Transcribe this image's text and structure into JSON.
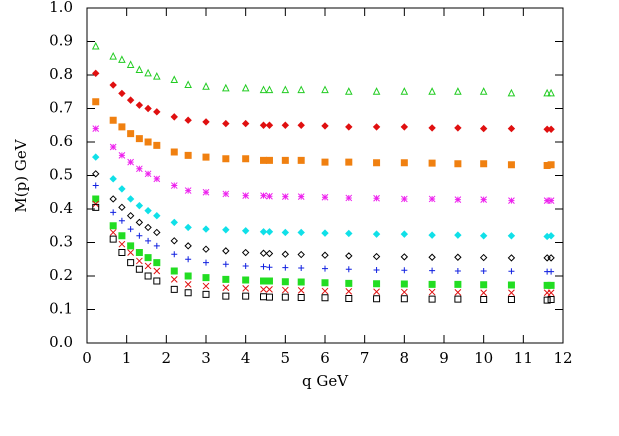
{
  "chart_data": {
    "type": "scatter",
    "xlabel": "q  GeV",
    "ylabel": "M(p)  GeV",
    "xlim": [
      0,
      12
    ],
    "ylim": [
      0,
      1
    ],
    "xticks": [
      0,
      1,
      2,
      3,
      4,
      5,
      6,
      7,
      8,
      9,
      10,
      11,
      12
    ],
    "yticks": [
      {
        "value": 0,
        "label": "0.0"
      },
      0.1,
      0.2,
      0.3,
      0.4,
      0.5,
      0.6,
      0.7,
      0.8,
      0.9,
      {
        "value": 1,
        "label": "1.0"
      }
    ],
    "x": [
      0.22,
      0.66,
      0.88,
      1.1,
      1.32,
      1.54,
      1.76,
      2.2,
      2.55,
      3.0,
      3.5,
      4.0,
      4.45,
      4.6,
      5.0,
      5.4,
      6.0,
      6.6,
      7.3,
      8.0,
      8.7,
      9.35,
      10.0,
      10.7,
      11.6,
      11.7
    ],
    "series": [
      {
        "color": "#22cc22",
        "marker": "triangle-open",
        "values": [
          0.885,
          0.855,
          0.845,
          0.83,
          0.815,
          0.805,
          0.795,
          0.785,
          0.77,
          0.765,
          0.76,
          0.76,
          0.755,
          0.755,
          0.755,
          0.755,
          0.755,
          0.75,
          0.75,
          0.75,
          0.75,
          0.75,
          0.75,
          0.745,
          0.745,
          0.745
        ]
      },
      {
        "color": "#e01010",
        "marker": "diamond",
        "values": [
          0.805,
          0.77,
          0.745,
          0.725,
          0.71,
          0.7,
          0.69,
          0.675,
          0.665,
          0.66,
          0.655,
          0.655,
          0.65,
          0.65,
          0.65,
          0.65,
          0.648,
          0.645,
          0.645,
          0.645,
          0.642,
          0.642,
          0.64,
          0.64,
          0.638,
          0.638
        ]
      },
      {
        "color": "#f08010",
        "marker": "square",
        "values": [
          0.72,
          0.665,
          0.645,
          0.625,
          0.61,
          0.6,
          0.59,
          0.57,
          0.56,
          0.555,
          0.55,
          0.55,
          0.545,
          0.545,
          0.545,
          0.545,
          0.54,
          0.54,
          0.538,
          0.538,
          0.537,
          0.535,
          0.535,
          0.532,
          0.53,
          0.532
        ]
      },
      {
        "color": "#ee22ee",
        "marker": "asterisk",
        "values": [
          0.64,
          0.585,
          0.56,
          0.54,
          0.52,
          0.505,
          0.49,
          0.47,
          0.455,
          0.45,
          0.445,
          0.44,
          0.44,
          0.438,
          0.437,
          0.437,
          0.435,
          0.433,
          0.432,
          0.43,
          0.43,
          0.428,
          0.428,
          0.425,
          0.425,
          0.425
        ]
      },
      {
        "color": "#10e0e8",
        "marker": "diamond",
        "values": [
          0.555,
          0.49,
          0.46,
          0.43,
          0.41,
          0.395,
          0.38,
          0.36,
          0.345,
          0.34,
          0.338,
          0.335,
          0.332,
          0.332,
          0.33,
          0.33,
          0.328,
          0.327,
          0.325,
          0.325,
          0.322,
          0.322,
          0.32,
          0.32,
          0.318,
          0.32
        ]
      },
      {
        "color": "#000000",
        "marker": "diamond-open",
        "values": [
          0.505,
          0.43,
          0.405,
          0.38,
          0.36,
          0.345,
          0.33,
          0.305,
          0.29,
          0.28,
          0.275,
          0.27,
          0.268,
          0.267,
          0.265,
          0.264,
          0.262,
          0.26,
          0.258,
          0.257,
          0.256,
          0.256,
          0.255,
          0.254,
          0.254,
          0.254
        ]
      },
      {
        "color": "#1020e0",
        "marker": "plus",
        "values": [
          0.47,
          0.39,
          0.365,
          0.34,
          0.32,
          0.305,
          0.29,
          0.265,
          0.25,
          0.24,
          0.235,
          0.23,
          0.228,
          0.226,
          0.225,
          0.224,
          0.222,
          0.22,
          0.218,
          0.217,
          0.216,
          0.215,
          0.215,
          0.214,
          0.213,
          0.213
        ]
      },
      {
        "color": "#22dd22",
        "marker": "square",
        "values": [
          0.43,
          0.35,
          0.32,
          0.29,
          0.27,
          0.255,
          0.24,
          0.215,
          0.2,
          0.195,
          0.19,
          0.188,
          0.185,
          0.185,
          0.183,
          0.182,
          0.18,
          0.178,
          0.177,
          0.176,
          0.175,
          0.175,
          0.174,
          0.173,
          0.172,
          0.172
        ]
      },
      {
        "color": "#e01010",
        "marker": "x",
        "values": [
          0.415,
          0.33,
          0.295,
          0.27,
          0.245,
          0.23,
          0.215,
          0.19,
          0.175,
          0.17,
          0.165,
          0.163,
          0.16,
          0.16,
          0.158,
          0.157,
          0.155,
          0.154,
          0.153,
          0.152,
          0.152,
          0.151,
          0.15,
          0.15,
          0.15,
          0.15
        ]
      },
      {
        "color": "#000000",
        "marker": "square-open",
        "values": [
          0.405,
          0.31,
          0.27,
          0.24,
          0.22,
          0.2,
          0.185,
          0.16,
          0.15,
          0.145,
          0.14,
          0.14,
          0.138,
          0.137,
          0.137,
          0.136,
          0.135,
          0.133,
          0.132,
          0.132,
          0.131,
          0.131,
          0.13,
          0.13,
          0.128,
          0.13
        ]
      }
    ]
  }
}
